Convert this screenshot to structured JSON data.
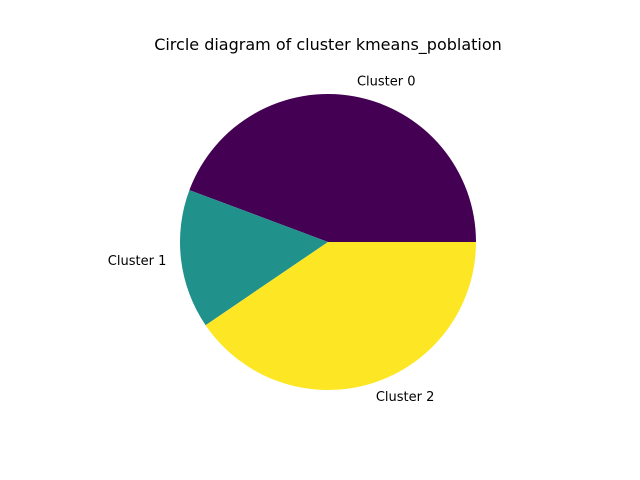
{
  "chart_data": {
    "type": "pie",
    "title": "Circle diagram of cluster kmeans_poblation",
    "categories": [
      "Cluster 0",
      "Cluster 1",
      "Cluster 2"
    ],
    "values": [
      44.3,
      15.2,
      40.5
    ],
    "colors": [
      "#440154",
      "#21918c",
      "#fde725"
    ],
    "start_angle_deg": 0,
    "direction": "counterclockwise",
    "legend": "none"
  }
}
